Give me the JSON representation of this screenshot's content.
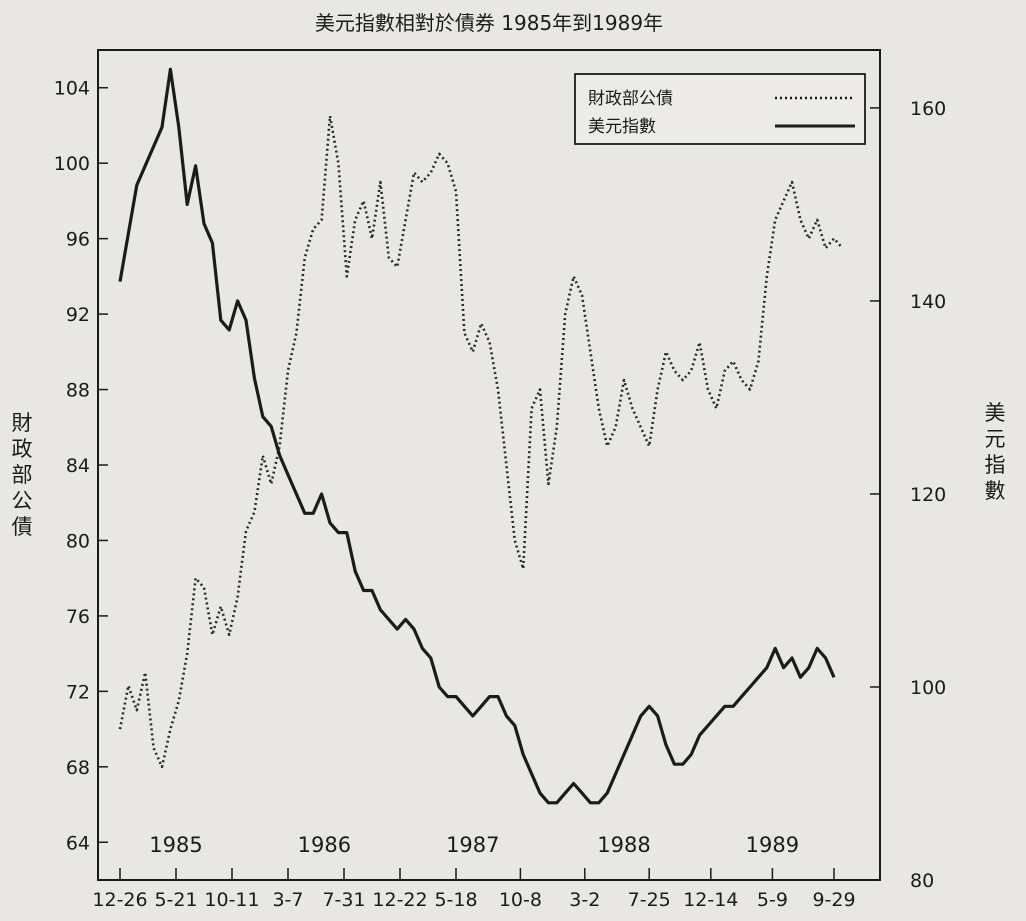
{
  "chart_data": {
    "type": "line",
    "title": "美元指數相對於債券 1985年到1989年",
    "left_axis": {
      "label": "財政部公債",
      "range": [
        62,
        106
      ],
      "ticks": [
        64,
        68,
        72,
        76,
        80,
        84,
        88,
        92,
        96,
        100,
        104
      ]
    },
    "right_axis": {
      "label": "美元指數",
      "range": [
        80,
        166
      ],
      "ticks": [
        80,
        100,
        120,
        140,
        160
      ]
    },
    "x_axis": {
      "range": [
        0,
        26
      ],
      "ticks": [
        {
          "x": 0,
          "label": "12-26"
        },
        {
          "x": 2,
          "label": "5-21"
        },
        {
          "x": 4,
          "label": "10-11"
        },
        {
          "x": 6,
          "label": "3-7"
        },
        {
          "x": 8,
          "label": "7-31"
        },
        {
          "x": 10,
          "label": "12-22"
        },
        {
          "x": 12,
          "label": "5-18"
        },
        {
          "x": 14.3,
          "label": "10-8"
        },
        {
          "x": 16.6,
          "label": "3-2"
        },
        {
          "x": 18.9,
          "label": "7-25"
        },
        {
          "x": 21.1,
          "label": "12-14"
        },
        {
          "x": 23.3,
          "label": "5-9"
        },
        {
          "x": 25.5,
          "label": "9-29"
        }
      ],
      "year_labels": [
        {
          "x": 2.0,
          "label": "1985"
        },
        {
          "x": 7.3,
          "label": "1986"
        },
        {
          "x": 12.6,
          "label": "1987"
        },
        {
          "x": 18.0,
          "label": "1988"
        },
        {
          "x": 23.3,
          "label": "1989"
        }
      ]
    },
    "legend": {
      "position": "top-right",
      "items": [
        {
          "label": "財政部公債",
          "style": "dotted"
        },
        {
          "label": "美元指數",
          "style": "solid"
        }
      ]
    },
    "series": [
      {
        "name": "財政部公債",
        "axis": "left",
        "style": "dotted",
        "color": "#2a2a2a",
        "x": [
          0,
          0.3,
          0.6,
          0.9,
          1.2,
          1.5,
          1.8,
          2.1,
          2.4,
          2.7,
          3.0,
          3.3,
          3.6,
          3.9,
          4.2,
          4.5,
          4.8,
          5.1,
          5.4,
          5.7,
          6.0,
          6.3,
          6.6,
          6.9,
          7.2,
          7.5,
          7.8,
          8.1,
          8.4,
          8.7,
          9.0,
          9.3,
          9.6,
          9.9,
          10.2,
          10.5,
          10.8,
          11.1,
          11.4,
          11.7,
          12.0,
          12.3,
          12.6,
          12.9,
          13.2,
          13.5,
          13.8,
          14.1,
          14.4,
          14.7,
          15.0,
          15.3,
          15.6,
          15.9,
          16.2,
          16.5,
          16.8,
          17.1,
          17.4,
          17.7,
          18.0,
          18.3,
          18.6,
          18.9,
          19.2,
          19.5,
          19.8,
          20.1,
          20.4,
          20.7,
          21.0,
          21.3,
          21.6,
          21.9,
          22.2,
          22.5,
          22.8,
          23.1,
          23.4,
          23.7,
          24.0,
          24.3,
          24.6,
          24.9,
          25.2,
          25.5,
          25.8
        ],
        "values": [
          70,
          72.3,
          71,
          73,
          69,
          68,
          70,
          71.5,
          74,
          78,
          77.5,
          75,
          76.5,
          75,
          77,
          80.5,
          81.5,
          84.5,
          83,
          85,
          89,
          91,
          95,
          96.5,
          97,
          102.5,
          100,
          94,
          97,
          98,
          96,
          99,
          95,
          94.5,
          97,
          99.5,
          99,
          99.5,
          100.5,
          100,
          98.5,
          91,
          90,
          91.5,
          90.5,
          88,
          84,
          80,
          78.5,
          87,
          88,
          83,
          86,
          92,
          94,
          93,
          90,
          87,
          85,
          86,
          88.5,
          87,
          86,
          85,
          88,
          90,
          89,
          88.5,
          89,
          90.5,
          88,
          87,
          89,
          89.5,
          88.5,
          88,
          89.5,
          94,
          97,
          98,
          99,
          97,
          96,
          97,
          95.5,
          96,
          95.5
        ]
      },
      {
        "name": "美元指數",
        "axis": "right",
        "style": "solid",
        "color": "#1b1b1b",
        "x": [
          0,
          0.3,
          0.6,
          0.9,
          1.2,
          1.5,
          1.8,
          2.1,
          2.4,
          2.7,
          3.0,
          3.3,
          3.6,
          3.9,
          4.2,
          4.5,
          4.8,
          5.1,
          5.4,
          5.7,
          6.0,
          6.3,
          6.6,
          6.9,
          7.2,
          7.5,
          7.8,
          8.1,
          8.4,
          8.7,
          9.0,
          9.3,
          9.6,
          9.9,
          10.2,
          10.5,
          10.8,
          11.1,
          11.4,
          11.7,
          12.0,
          12.3,
          12.6,
          12.9,
          13.2,
          13.5,
          13.8,
          14.1,
          14.4,
          14.7,
          15.0,
          15.3,
          15.6,
          15.9,
          16.2,
          16.5,
          16.8,
          17.1,
          17.4,
          17.7,
          18.0,
          18.3,
          18.6,
          18.9,
          19.2,
          19.5,
          19.8,
          20.1,
          20.4,
          20.7,
          21.0,
          21.3,
          21.6,
          21.9,
          22.2,
          22.5,
          22.8,
          23.1,
          23.4,
          23.7,
          24.0,
          24.3,
          24.6,
          24.9,
          25.2,
          25.5
        ],
        "values": [
          142,
          147,
          152,
          154,
          156,
          158,
          164,
          158,
          150,
          154,
          148,
          146,
          138,
          137,
          140,
          138,
          132,
          128,
          127,
          124,
          122,
          120,
          118,
          118,
          120,
          117,
          116,
          116,
          112,
          110,
          110,
          108,
          107,
          106,
          107,
          106,
          104,
          103,
          100,
          99,
          99,
          98,
          97,
          98,
          99,
          99,
          97,
          96,
          93,
          91,
          89,
          88,
          88,
          89,
          90,
          89,
          88,
          88,
          89,
          91,
          93,
          95,
          97,
          98,
          97,
          94,
          92,
          92,
          93,
          95,
          96,
          97,
          98,
          98,
          99,
          100,
          101,
          102,
          104,
          102,
          103,
          101,
          102,
          104,
          103,
          101
        ]
      }
    ]
  }
}
